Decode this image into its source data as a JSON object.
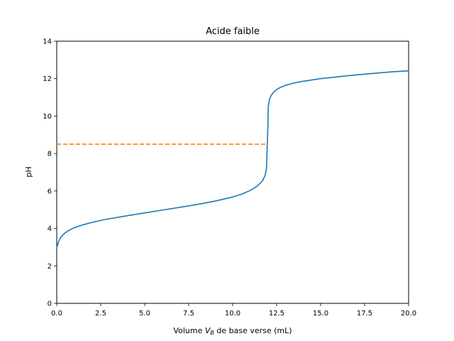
{
  "chart_data": {
    "type": "line",
    "title": "Acide faible",
    "xlabel": {
      "prefix": "Volume ",
      "var": "V",
      "sub": "B",
      "suffix": " de base verse (mL)"
    },
    "ylabel": "pH",
    "xlim": [
      0,
      20
    ],
    "ylim": [
      0,
      14
    ],
    "xticks": [
      0,
      2.5,
      5,
      7.5,
      10,
      12.5,
      15,
      17.5,
      20
    ],
    "xtick_labels": [
      "0.0",
      "2.5",
      "5.0",
      "7.5",
      "10.0",
      "12.5",
      "15.0",
      "17.5",
      "20.0"
    ],
    "yticks": [
      0,
      2,
      4,
      6,
      8,
      10,
      12,
      14
    ],
    "ytick_labels": [
      "0",
      "2",
      "4",
      "6",
      "8",
      "10",
      "12",
      "14"
    ],
    "grid": false,
    "series": [
      {
        "color": "#1f77b4",
        "style": "solid",
        "x": [
          0,
          0.05,
          0.1,
          0.2,
          0.35,
          0.5,
          0.75,
          1.0,
          1.5,
          2.0,
          2.5,
          3.0,
          4.0,
          5.0,
          6.0,
          7.0,
          8.0,
          9.0,
          10.0,
          10.5,
          11.0,
          11.3,
          11.5,
          11.7,
          11.85,
          11.92,
          11.96,
          12.0,
          12.02,
          12.05,
          12.1,
          12.2,
          12.35,
          12.5,
          12.75,
          13.0,
          13.5,
          14.0,
          15.0,
          16.0,
          17.0,
          18.0,
          19.0,
          20.0
        ],
        "y": [
          2.95,
          3.12,
          3.28,
          3.48,
          3.66,
          3.78,
          3.93,
          4.04,
          4.2,
          4.32,
          4.43,
          4.52,
          4.68,
          4.83,
          4.98,
          5.13,
          5.28,
          5.46,
          5.68,
          5.83,
          6.03,
          6.2,
          6.35,
          6.55,
          6.85,
          7.2,
          8.3,
          9.4,
          10.45,
          10.7,
          10.92,
          11.12,
          11.3,
          11.42,
          11.55,
          11.64,
          11.77,
          11.86,
          12.0,
          12.1,
          12.2,
          12.28,
          12.36,
          12.42
        ]
      },
      {
        "color": "#ff7f0e",
        "style": "dashed",
        "x": [
          0,
          12
        ],
        "y": [
          8.5,
          8.5
        ]
      }
    ]
  }
}
